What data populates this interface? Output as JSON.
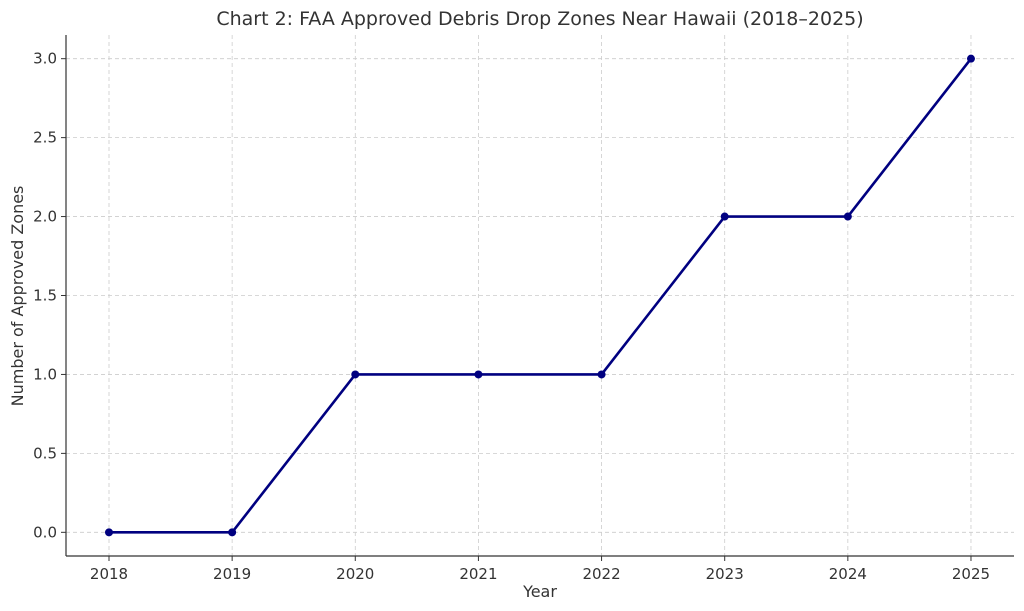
{
  "chart_data": {
    "type": "line",
    "title": "Chart 2: FAA Approved Debris Drop Zones Near Hawaii (2018–2025)",
    "xlabel": "Year",
    "ylabel": "Number of Approved Zones",
    "x": [
      "2018",
      "2019",
      "2020",
      "2021",
      "2022",
      "2023",
      "2024",
      "2025"
    ],
    "series": [
      {
        "values": [
          0,
          0,
          1,
          1,
          1,
          2,
          2,
          3
        ],
        "color": "#000080",
        "marker": "circle"
      }
    ],
    "ylim": [
      -0.15,
      3.15
    ],
    "yticks": [
      0.0,
      0.5,
      1.0,
      1.5,
      2.0,
      2.5,
      3.0
    ],
    "ytick_labels": [
      "0.0",
      "0.5",
      "1.0",
      "1.5",
      "2.0",
      "2.5",
      "3.0"
    ],
    "grid": true,
    "grid_color": "#cccccc",
    "axis_color": "#333333"
  }
}
